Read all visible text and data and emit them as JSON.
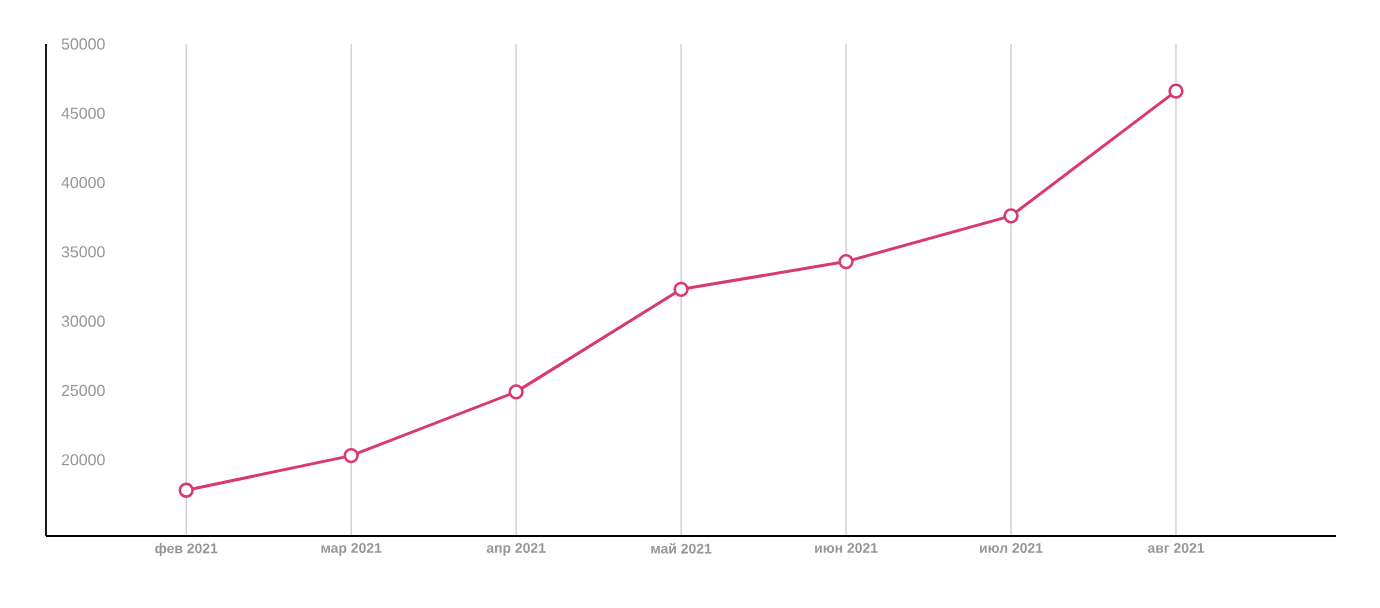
{
  "chart_data": {
    "type": "line",
    "categories": [
      "фев 2021",
      "мар 2021",
      "апр 2021",
      "май 2021",
      "июн 2021",
      "июл 2021",
      "авг 2021"
    ],
    "series": [
      {
        "color": "#d93a6d",
        "values": [
          17800,
          20300,
          24900,
          32300,
          34300,
          37600,
          46600
        ]
      }
    ],
    "ylim": [
      14500,
      50000
    ],
    "yticks": [
      20000,
      25000,
      30000,
      35000,
      40000,
      45000,
      50000
    ],
    "grid": "x",
    "marker": "circle",
    "line_style": "solid"
  }
}
